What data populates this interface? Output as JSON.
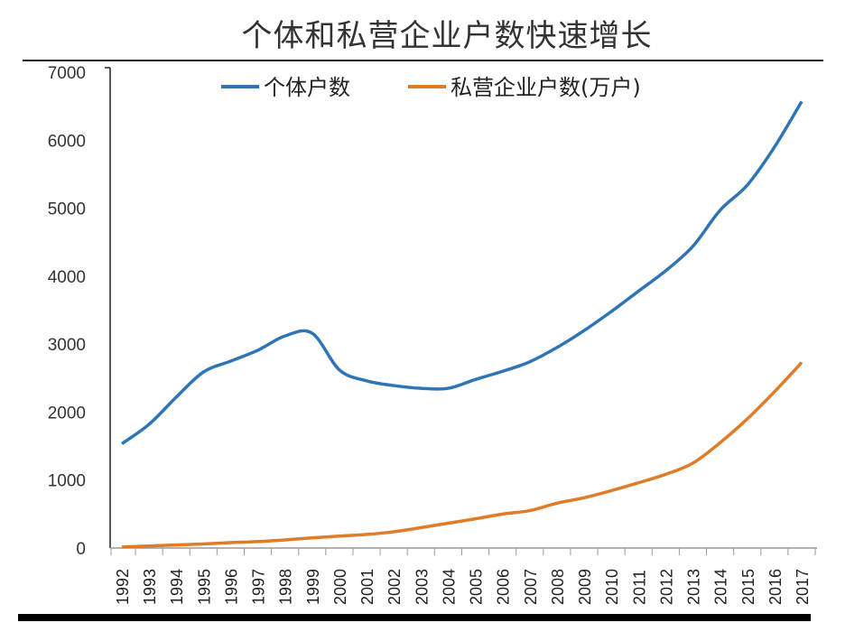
{
  "chart_data": {
    "type": "line",
    "title": "个体和私营企业户数快速增长",
    "xlabel": "",
    "ylabel": "",
    "ylim": [
      0,
      7000
    ],
    "yticks": [
      0,
      1000,
      2000,
      3000,
      4000,
      5000,
      6000,
      7000
    ],
    "grid": false,
    "legend_position": "top-center",
    "x": [
      "1992",
      "1993",
      "1994",
      "1995",
      "1996",
      "1997",
      "1998",
      "1999",
      "2000",
      "2001",
      "2002",
      "2003",
      "2004",
      "2005",
      "2006",
      "2007",
      "2008",
      "2009",
      "2010",
      "2011",
      "2012",
      "2013",
      "2014",
      "2015",
      "2016",
      "2017"
    ],
    "series": [
      {
        "name": "个体户数",
        "color": "#2e75b6",
        "values": [
          1534,
          1820,
          2220,
          2590,
          2750,
          2910,
          3120,
          3160,
          2620,
          2460,
          2390,
          2350,
          2350,
          2480,
          2600,
          2740,
          2950,
          3200,
          3480,
          3780,
          4080,
          4440,
          4970,
          5340,
          5900,
          6570
        ]
      },
      {
        "name": "私营企业户数(万户)",
        "color": "#e07b28",
        "values": [
          15,
          30,
          45,
          60,
          80,
          95,
          120,
          150,
          176,
          200,
          240,
          300,
          365,
          430,
          500,
          550,
          660,
          740,
          845,
          960,
          1085,
          1250,
          1550,
          1900,
          2300,
          2730
        ]
      }
    ]
  }
}
